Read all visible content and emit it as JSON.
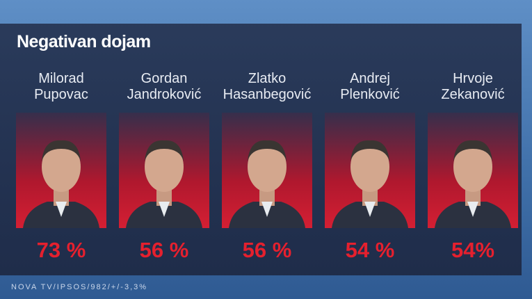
{
  "title": "Negativan dojam",
  "candidates": [
    {
      "first_name": "Milorad",
      "last_name": "Pupovac",
      "share": "73 %"
    },
    {
      "first_name": "Gordan",
      "last_name": "Jandroković",
      "share": "56 %"
    },
    {
      "first_name": "Zlatko",
      "last_name": "Hasanbegović",
      "share": "56 %"
    },
    {
      "first_name": "Andrej",
      "last_name": "Plenković",
      "share": "54 %"
    },
    {
      "first_name": "Hrvoje",
      "last_name": "Zekanović",
      "share": "54%"
    }
  ],
  "source": "NOVA TV/IPSOS/982/+/-3,3%"
}
